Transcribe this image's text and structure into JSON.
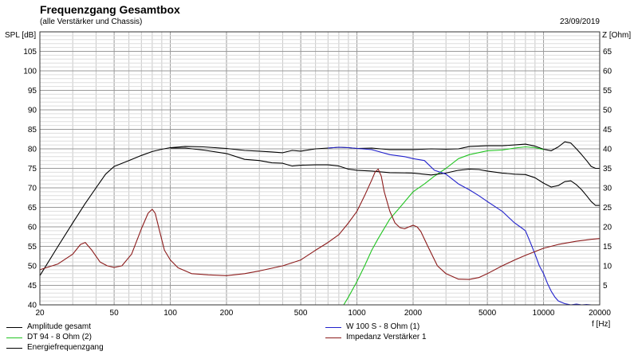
{
  "header": {
    "title": "Frequenzgang Gesamtbox",
    "subtitle": "(alle Verstärker und Chassis)",
    "date": "23/09/2019"
  },
  "chart_data": {
    "type": "line",
    "xscale": "log",
    "xlim": [
      20,
      20000
    ],
    "ylim": [
      40,
      110
    ],
    "y2lim": [
      0,
      70
    ],
    "ylabel": "SPL [dB]",
    "y2label": "Z [Ohm]",
    "xlabel": "f [Hz]",
    "grid": true,
    "legend_position": "bottom",
    "x_ticks": [
      20,
      50,
      100,
      200,
      500,
      1000,
      2000,
      5000,
      10000,
      20000
    ],
    "x_tick_labels": [
      "20",
      "50",
      "100",
      "200",
      "500",
      "1000",
      "2000",
      "5000",
      "10000",
      "20000"
    ],
    "y_ticks": [
      40,
      45,
      50,
      55,
      60,
      65,
      70,
      75,
      80,
      85,
      90,
      95,
      100,
      105
    ],
    "y2_ticks": [
      5,
      10,
      15,
      20,
      25,
      30,
      35,
      40,
      45,
      50,
      55,
      60,
      65
    ],
    "series": [
      {
        "name": "Amplitude gesamt",
        "color": "#000000",
        "axis": "left",
        "x": [
          20,
          25,
          30,
          35,
          40,
          45,
          50,
          60,
          70,
          80,
          90,
          100,
          120,
          150,
          200,
          250,
          300,
          350,
          400,
          450,
          500,
          600,
          700,
          800,
          900,
          1000,
          1200,
          1500,
          2000,
          2500,
          3000,
          3500,
          4000,
          5000,
          6000,
          7000,
          8000,
          9000,
          10000,
          11000,
          12000,
          13000,
          14000,
          15000,
          16000,
          17000,
          18000,
          19000,
          20000
        ],
        "y": [
          47.5,
          55,
          61,
          66,
          70,
          73.5,
          75.5,
          77,
          78.3,
          79.3,
          79.9,
          80.3,
          80.6,
          80.5,
          80.1,
          79.6,
          79.4,
          79.2,
          79.0,
          79.6,
          79.4,
          80.0,
          80.2,
          80.4,
          80.3,
          80.1,
          80.2,
          79.8,
          79.8,
          80.0,
          79.9,
          80.0,
          80.6,
          80.8,
          80.8,
          81.0,
          81.2,
          80.7,
          79.9,
          79.5,
          80.5,
          81.8,
          81.5,
          80.0,
          78.5,
          77.0,
          75.5,
          75.0,
          75.0
        ]
      },
      {
        "name": "DT 94 - 8 Ohm (2)",
        "color": "#22c422",
        "axis": "left",
        "x": [
          850,
          900,
          1000,
          1100,
          1200,
          1300,
          1500,
          1700,
          2000,
          2300,
          2600,
          3000,
          3500,
          4000,
          5000,
          6000,
          7000,
          8000,
          9000,
          10000
        ],
        "y": [
          40,
          42,
          46,
          50,
          54,
          57,
          62,
          65,
          69,
          71,
          73,
          75,
          77.5,
          78.5,
          79.5,
          79.7,
          80.2,
          80.5,
          80.3,
          79.8
        ]
      },
      {
        "name": "Energiefrequenzgang",
        "color": "#000000",
        "axis": "left",
        "x": [
          100,
          120,
          150,
          200,
          250,
          300,
          350,
          400,
          450,
          500,
          600,
          700,
          800,
          900,
          1000,
          1200,
          1500,
          2000,
          2500,
          3000,
          3500,
          4000,
          4500,
          5000,
          6000,
          7000,
          8000,
          9000,
          10000,
          11000,
          12000,
          13000,
          14000,
          15000,
          16000,
          17000,
          18000,
          19000,
          20000
        ],
        "y": [
          80.2,
          80.2,
          79.7,
          78.8,
          77.3,
          77.0,
          76.4,
          76.3,
          75.6,
          75.8,
          75.9,
          75.9,
          75.6,
          74.8,
          74.5,
          74.3,
          73.9,
          73.8,
          73.3,
          73.8,
          74.5,
          74.8,
          74.7,
          74.3,
          73.8,
          73.5,
          73.4,
          72.6,
          71.2,
          70.2,
          70.6,
          71.6,
          71.8,
          70.8,
          69.5,
          68.0,
          66.5,
          65.5,
          65.5
        ]
      },
      {
        "name": "W 100 S - 8 Ohm (1)",
        "color": "#2222cc",
        "axis": "left",
        "x": [
          700,
          800,
          900,
          1000,
          1200,
          1500,
          1800,
          2000,
          2300,
          2600,
          3000,
          3500,
          4000,
          4500,
          5000,
          6000,
          7000,
          7500,
          8000,
          8500,
          9000,
          9500,
          10000,
          10500,
          11000,
          11500,
          12000,
          13000,
          14000,
          15000,
          16000,
          17000,
          18000,
          20000
        ],
        "y": [
          80.2,
          80.4,
          80.3,
          80.1,
          79.8,
          78.5,
          78.0,
          77.5,
          77.0,
          74.5,
          73.5,
          71.0,
          69.5,
          68.0,
          66.5,
          64.0,
          61.0,
          60.0,
          59.0,
          56.0,
          53.0,
          50.0,
          48.0,
          45.5,
          43.5,
          42.0,
          41.0,
          40.3,
          40.0,
          40.2,
          40.0,
          40.1,
          40.0,
          40.0
        ]
      },
      {
        "name": "Impedanz Verstärker 1",
        "color": "#8b1a1a",
        "axis": "right",
        "x": [
          20,
          25,
          30,
          33,
          35,
          38,
          42,
          46,
          50,
          55,
          62,
          70,
          76,
          80,
          83,
          87,
          93,
          100,
          110,
          130,
          160,
          200,
          250,
          300,
          400,
          500,
          600,
          700,
          800,
          900,
          1000,
          1100,
          1200,
          1250,
          1300,
          1350,
          1400,
          1500,
          1600,
          1700,
          1800,
          1900,
          2000,
          2100,
          2200,
          2400,
          2700,
          3000,
          3500,
          4000,
          4500,
          5000,
          6000,
          7000,
          8000,
          10000,
          12000,
          15000,
          18000,
          20000
        ],
        "y": [
          9,
          10.5,
          13,
          15.5,
          16,
          14,
          11,
          10,
          9.6,
          10,
          13,
          19.5,
          23.5,
          24.5,
          23.5,
          19.5,
          14,
          11.5,
          9.5,
          8,
          7.7,
          7.5,
          8,
          8.7,
          10,
          11.5,
          14,
          16,
          18,
          21,
          24,
          28,
          32,
          34,
          34.8,
          33,
          29,
          24,
          21,
          19.8,
          19.5,
          20,
          20.4,
          20,
          18.8,
          15,
          10,
          8,
          6.6,
          6.5,
          7,
          8,
          10,
          11.5,
          12.7,
          14.5,
          15.5,
          16.3,
          16.8,
          17
        ]
      }
    ],
    "legend": [
      {
        "label": "Amplitude gesamt",
        "color": "#000000"
      },
      {
        "label": "W 100 S - 8 Ohm (1)",
        "color": "#2222cc"
      },
      {
        "label": "DT 94 - 8 Ohm (2)",
        "color": "#22c422"
      },
      {
        "label": "Impedanz Verstärker 1",
        "color": "#8b1a1a"
      },
      {
        "label": "Energiefrequenzgang",
        "color": "#000000"
      }
    ]
  }
}
